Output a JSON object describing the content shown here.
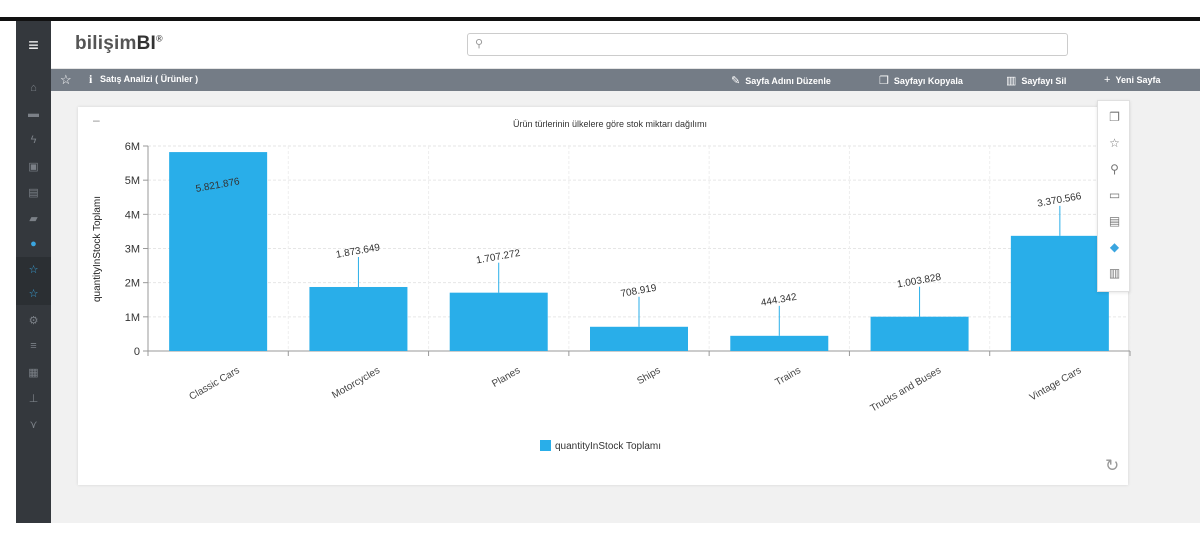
{
  "app": {
    "logo_text": "bilişim",
    "logo_bi": "BI",
    "logo_mark": "®"
  },
  "search": {
    "placeholder": ""
  },
  "sidebar": {
    "menu_icon": "hamburger-icon",
    "items": [
      {
        "icon": "home-icon",
        "glyph": "⌂"
      },
      {
        "icon": "folder-icon",
        "glyph": "▬"
      },
      {
        "icon": "bolt-icon",
        "glyph": "ϟ"
      },
      {
        "icon": "building-icon",
        "glyph": "▣"
      },
      {
        "icon": "list-icon",
        "glyph": "▤"
      },
      {
        "icon": "car-icon",
        "glyph": "▰"
      },
      {
        "icon": "dashboard-icon",
        "glyph": "●"
      },
      {
        "icon": "star-icon",
        "glyph": "☆"
      },
      {
        "icon": "star-icon",
        "glyph": "☆"
      },
      {
        "icon": "cog-icon",
        "glyph": "⚙"
      },
      {
        "icon": "database-icon",
        "glyph": "≡"
      },
      {
        "icon": "table-icon",
        "glyph": "▦"
      },
      {
        "icon": "sitemap-icon",
        "glyph": "⊥"
      },
      {
        "icon": "network-icon",
        "glyph": "⋎"
      }
    ]
  },
  "toolbar": {
    "page_title": "Satış Analizi ( Ürünler )",
    "actions": [
      {
        "label": "Sayfa Adını Düzenle",
        "icon": "edit-icon",
        "glyph": "✎"
      },
      {
        "label": "Sayfayı Kopyala",
        "icon": "copy-icon",
        "glyph": "❐"
      },
      {
        "label": "Sayfayı Sil",
        "icon": "trash-icon",
        "glyph": "▥"
      },
      {
        "label": "Yeni Sayfa",
        "icon": "plus-icon",
        "glyph": "+"
      }
    ]
  },
  "side_tools": [
    {
      "icon": "copy-icon",
      "glyph": "❐"
    },
    {
      "icon": "star-icon",
      "glyph": "☆"
    },
    {
      "icon": "zoom-icon",
      "glyph": "⚲"
    },
    {
      "icon": "window-icon",
      "glyph": "▭"
    },
    {
      "icon": "export-icon",
      "glyph": "▤"
    },
    {
      "icon": "filter-icon",
      "glyph": "◆"
    },
    {
      "icon": "trash-icon",
      "glyph": "▥"
    }
  ],
  "chart_data": {
    "type": "bar",
    "title": "Ürün türlerinin ülkelere göre stok miktarı dağılımı",
    "ylabel": "quantityInStock Toplamı",
    "xlabel": "",
    "ylim": [
      0,
      6000000
    ],
    "yticks": [
      "0",
      "1M",
      "2M",
      "3M",
      "4M",
      "5M",
      "6M"
    ],
    "categories": [
      "Classic Cars",
      "Motorcycles",
      "Planes",
      "Ships",
      "Trains",
      "Trucks and Buses",
      "Vintage Cars"
    ],
    "series": [
      {
        "name": "quantityInStock Toplamı",
        "values": [
          5821876,
          1873649,
          1707272,
          708919,
          444342,
          1003828,
          3370566
        ],
        "labels": [
          "5.821.876",
          "1.873.649",
          "1.707.272",
          "708.919",
          "444.342",
          "1.003.828",
          "3.370.566"
        ]
      }
    ],
    "bar_color": "#29aee9",
    "grid": true,
    "legend": "bottom"
  }
}
